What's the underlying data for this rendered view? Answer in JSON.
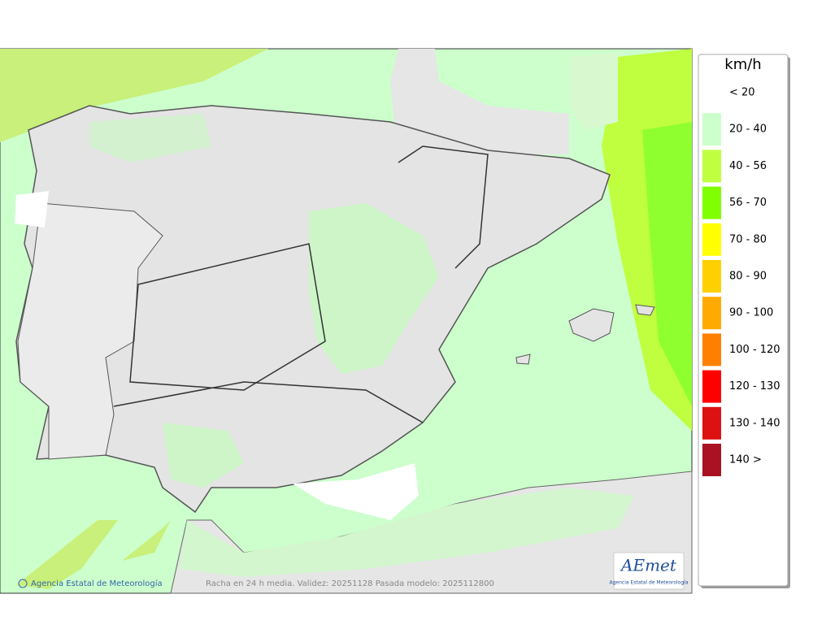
{
  "map": {
    "caption": "Racha en 24 h media. Validez: 20251128 Pasada modelo: 2025112800",
    "credit": "Agencia Estatal de Meteorología",
    "logo": {
      "name": "AEmet",
      "subtitle": "Agencia Estatal de Meteorología"
    }
  },
  "legend": {
    "title": "km/h",
    "items": [
      {
        "label": "< 20",
        "color": "#ffffff"
      },
      {
        "label": "20 - 40",
        "color": "#ccffcc"
      },
      {
        "label": "40 - 56",
        "color": "#c0ff40"
      },
      {
        "label": "56 - 70",
        "color": "#80ff00"
      },
      {
        "label": "70 - 80",
        "color": "#ffff00"
      },
      {
        "label": "80 - 90",
        "color": "#ffd000"
      },
      {
        "label": "90 - 100",
        "color": "#ffaa00"
      },
      {
        "label": "100 - 120",
        "color": "#ff8000"
      },
      {
        "label": "120 - 130",
        "color": "#ff0000"
      },
      {
        "label": "130 - 140",
        "color": "#dd1111"
      },
      {
        "label": "140 >",
        "color": "#aa1122"
      }
    ]
  }
}
